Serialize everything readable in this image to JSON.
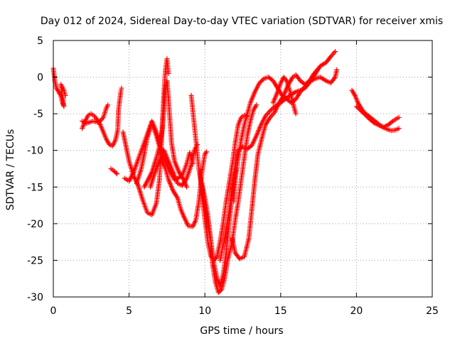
{
  "chart_data": {
    "type": "scatter",
    "title": "Day 012 of 2024, Sidereal Day-to-day VTEC variation (SDTVAR) for receiver xmis",
    "xlabel": "GPS time / hours",
    "ylabel": "SDTVAR / TECUs",
    "xlim": [
      0,
      25
    ],
    "ylim": [
      -30,
      5
    ],
    "grid": true,
    "x_ticks": [
      "0",
      "5",
      "10",
      "15",
      "20",
      "25"
    ],
    "y_ticks": [
      "5",
      "0",
      "-5",
      "-10",
      "-15",
      "-20",
      "-25",
      "-30"
    ],
    "marker": "+",
    "color": "#ff0000",
    "series": [
      {
        "name": "s1",
        "points": [
          [
            0.0,
            1.2
          ],
          [
            0.1,
            -0.5
          ],
          [
            0.2,
            -1.5
          ],
          [
            0.35,
            -2.0
          ],
          [
            0.5,
            -2.6
          ],
          [
            0.6,
            -3.5
          ],
          [
            0.7,
            -4.0
          ],
          [
            0.5,
            -1.0
          ],
          [
            0.7,
            -1.8
          ],
          [
            0.8,
            -2.5
          ]
        ]
      },
      {
        "name": "s2",
        "points": [
          [
            1.9,
            -7.0
          ],
          [
            2.1,
            -6.0
          ],
          [
            2.3,
            -5.2
          ],
          [
            2.5,
            -5.0
          ],
          [
            2.7,
            -5.3
          ],
          [
            2.9,
            -5.8
          ],
          [
            3.1,
            -6.5
          ],
          [
            3.3,
            -7.5
          ],
          [
            3.5,
            -8.5
          ],
          [
            3.7,
            -9.2
          ],
          [
            3.9,
            -9.4
          ],
          [
            4.1,
            -8.6
          ],
          [
            4.25,
            -7.2
          ],
          [
            4.3,
            -4.5
          ],
          [
            4.45,
            -2.0
          ],
          [
            4.5,
            -1.5
          ]
        ]
      },
      {
        "name": "s3",
        "points": [
          [
            1.9,
            -6.0
          ],
          [
            2.2,
            -6.3
          ],
          [
            2.6,
            -6.0
          ],
          [
            3.0,
            -6.2
          ],
          [
            3.3,
            -5.5
          ],
          [
            3.5,
            -4.2
          ],
          [
            3.6,
            -3.8
          ]
        ]
      },
      {
        "name": "s4",
        "points": [
          [
            3.8,
            -12.5
          ],
          [
            4.0,
            -12.8
          ],
          [
            4.2,
            -13.2
          ]
        ]
      },
      {
        "name": "s5",
        "points": [
          [
            4.6,
            -7.5
          ],
          [
            4.8,
            -9.5
          ],
          [
            5.0,
            -11.5
          ],
          [
            5.3,
            -13.5
          ],
          [
            5.6,
            -14.8
          ],
          [
            5.9,
            -16.8
          ],
          [
            6.2,
            -18.5
          ],
          [
            6.5,
            -18.8
          ],
          [
            6.8,
            -17.2
          ],
          [
            7.0,
            -14.0
          ],
          [
            7.1,
            -10.5
          ],
          [
            7.2,
            -6.0
          ],
          [
            7.3,
            -2.0
          ],
          [
            7.4,
            1.0
          ],
          [
            7.5,
            2.5
          ],
          [
            7.6,
            0.5
          ]
        ]
      },
      {
        "name": "s6",
        "points": [
          [
            4.7,
            -13.8
          ],
          [
            5.0,
            -14.2
          ],
          [
            5.3,
            -13.0
          ],
          [
            5.6,
            -11.2
          ],
          [
            5.9,
            -9.5
          ],
          [
            6.2,
            -7.8
          ],
          [
            6.5,
            -6.0
          ],
          [
            6.8,
            -7.5
          ],
          [
            7.0,
            -9.0
          ],
          [
            7.3,
            -11.0
          ],
          [
            7.6,
            -12.5
          ],
          [
            8.0,
            -14.0
          ],
          [
            8.5,
            -13.5
          ],
          [
            8.8,
            -11.8
          ],
          [
            9.0,
            -10.3
          ],
          [
            9.2,
            -11.8
          ]
        ]
      },
      {
        "name": "s7",
        "points": [
          [
            5.5,
            -14.5
          ],
          [
            5.8,
            -12.5
          ],
          [
            6.0,
            -10.5
          ],
          [
            6.2,
            -8.3
          ],
          [
            6.5,
            -6.2
          ],
          [
            6.8,
            -8.0
          ],
          [
            7.0,
            -9.5
          ],
          [
            7.2,
            -11.5
          ],
          [
            7.4,
            -12.5
          ],
          [
            7.6,
            -14.0
          ],
          [
            7.9,
            -15.5
          ],
          [
            8.2,
            -16.5
          ],
          [
            8.4,
            -18.0
          ],
          [
            8.6,
            -19.0
          ],
          [
            8.9,
            -20.3
          ],
          [
            9.2,
            -20.4
          ],
          [
            9.4,
            -19.5
          ],
          [
            9.6,
            -17.0
          ],
          [
            9.8,
            -13.0
          ],
          [
            10.0,
            -10.5
          ],
          [
            10.1,
            -10.2
          ]
        ]
      },
      {
        "name": "s8",
        "points": [
          [
            6.0,
            -15.0
          ],
          [
            6.5,
            -13.0
          ],
          [
            6.8,
            -11.0
          ],
          [
            7.0,
            -9.5
          ],
          [
            7.2,
            -7.0
          ],
          [
            7.3,
            -4.5
          ],
          [
            7.4,
            -1.5
          ],
          [
            7.5,
            -0.5
          ],
          [
            7.6,
            -3.0
          ],
          [
            7.7,
            -6.0
          ],
          [
            7.8,
            -9.0
          ],
          [
            8.0,
            -11.5
          ],
          [
            8.3,
            -13.0
          ],
          [
            8.6,
            -14.0
          ],
          [
            8.8,
            -15.0
          ]
        ]
      },
      {
        "name": "s9",
        "points": [
          [
            6.4,
            -15.0
          ],
          [
            6.7,
            -13.0
          ],
          [
            7.0,
            -11.5
          ],
          [
            7.3,
            -10.0
          ],
          [
            7.6,
            -11.5
          ],
          [
            7.9,
            -13.0
          ],
          [
            8.2,
            -14.5
          ],
          [
            8.5,
            -14.8
          ],
          [
            8.8,
            -13.8
          ],
          [
            9.1,
            -12.0
          ],
          [
            9.3,
            -10.0
          ],
          [
            9.5,
            -9.2
          ]
        ]
      },
      {
        "name": "s10",
        "points": [
          [
            9.1,
            -2.5
          ],
          [
            9.2,
            -4.5
          ],
          [
            9.3,
            -6.5
          ],
          [
            9.4,
            -8.5
          ],
          [
            9.5,
            -10.5
          ],
          [
            9.6,
            -12.5
          ],
          [
            9.8,
            -15.0
          ],
          [
            10.0,
            -17.5
          ],
          [
            10.2,
            -20.0
          ],
          [
            10.4,
            -22.5
          ],
          [
            10.6,
            -25.5
          ],
          [
            10.8,
            -27.5
          ],
          [
            11.0,
            -28.6
          ],
          [
            11.2,
            -27.0
          ],
          [
            11.4,
            -24.0
          ],
          [
            11.6,
            -20.0
          ],
          [
            11.8,
            -16.0
          ],
          [
            12.0,
            -13.0
          ],
          [
            12.1,
            -12.5
          ]
        ]
      },
      {
        "name": "s11",
        "points": [
          [
            9.8,
            -14.5
          ],
          [
            10.0,
            -16.5
          ],
          [
            10.2,
            -19.0
          ],
          [
            10.4,
            -22.5
          ],
          [
            10.5,
            -25.5
          ],
          [
            10.7,
            -28.0
          ],
          [
            10.9,
            -29.4
          ],
          [
            11.1,
            -29.0
          ],
          [
            11.3,
            -27.5
          ],
          [
            11.5,
            -25.0
          ],
          [
            11.8,
            -22.5
          ],
          [
            12.0,
            -19.5
          ],
          [
            12.2,
            -17.0
          ],
          [
            12.4,
            -14.0
          ],
          [
            12.6,
            -11.0
          ],
          [
            12.8,
            -8.0
          ],
          [
            13.0,
            -6.0
          ],
          [
            13.2,
            -4.5
          ],
          [
            13.4,
            -3.8
          ]
        ]
      },
      {
        "name": "s12",
        "points": [
          [
            9.7,
            -13.0
          ],
          [
            9.8,
            -16.0
          ],
          [
            10.0,
            -19.5
          ],
          [
            10.2,
            -22.5
          ],
          [
            10.4,
            -24.5
          ],
          [
            10.6,
            -25.0
          ],
          [
            10.8,
            -24.5
          ],
          [
            11.0,
            -22.5
          ],
          [
            11.2,
            -20.0
          ],
          [
            11.4,
            -17.0
          ],
          [
            11.6,
            -14.5
          ],
          [
            11.8,
            -12.0
          ],
          [
            12.0,
            -9.0
          ],
          [
            12.2,
            -6.5
          ],
          [
            12.4,
            -5.5
          ],
          [
            12.6,
            -5.2
          ],
          [
            12.8,
            -5.3
          ]
        ]
      },
      {
        "name": "s13",
        "points": [
          [
            11.0,
            -25.0
          ],
          [
            11.3,
            -22.0
          ],
          [
            11.6,
            -18.5
          ],
          [
            11.8,
            -15.0
          ],
          [
            12.0,
            -12.0
          ],
          [
            12.2,
            -10.0
          ],
          [
            12.5,
            -9.5
          ],
          [
            12.8,
            -9.8
          ],
          [
            13.1,
            -9.3
          ],
          [
            13.4,
            -8.0
          ],
          [
            13.7,
            -6.5
          ],
          [
            14.0,
            -5.3
          ],
          [
            14.3,
            -4.6
          ],
          [
            14.6,
            -4.0
          ],
          [
            15.0,
            -3.5
          ],
          [
            15.3,
            -3.0
          ],
          [
            15.6,
            -2.5
          ],
          [
            16.0,
            -2.0
          ],
          [
            16.3,
            -1.8
          ],
          [
            16.6,
            -1.5
          ],
          [
            17.0,
            -0.5
          ],
          [
            17.3,
            -0.2
          ],
          [
            17.6,
            0.0
          ],
          [
            18.0,
            -0.5
          ],
          [
            18.3,
            -0.8
          ],
          [
            18.6,
            0.0
          ],
          [
            18.7,
            1.0
          ]
        ]
      },
      {
        "name": "s14",
        "points": [
          [
            11.9,
            -17.0
          ],
          [
            12.0,
            -14.0
          ],
          [
            12.2,
            -11.0
          ],
          [
            12.4,
            -8.5
          ],
          [
            12.6,
            -6.5
          ],
          [
            12.8,
            -5.0
          ],
          [
            13.0,
            -3.5
          ],
          [
            13.3,
            -2.0
          ],
          [
            13.6,
            -0.8
          ],
          [
            13.9,
            -0.2
          ],
          [
            14.2,
            0.0
          ],
          [
            14.5,
            -0.5
          ],
          [
            14.8,
            -1.5
          ],
          [
            15.1,
            -2.5
          ],
          [
            15.4,
            -3.0
          ],
          [
            15.7,
            -3.5
          ],
          [
            16.0,
            -3.0
          ],
          [
            16.3,
            -2.0
          ],
          [
            16.6,
            -1.3
          ],
          [
            17.0,
            -0.5
          ],
          [
            17.3,
            0.5
          ],
          [
            17.6,
            1.5
          ],
          [
            18.0,
            2.0
          ],
          [
            18.3,
            2.8
          ],
          [
            18.6,
            3.5
          ]
        ]
      },
      {
        "name": "s15",
        "points": [
          [
            11.8,
            -22.0
          ],
          [
            12.0,
            -24.0
          ],
          [
            12.3,
            -24.8
          ],
          [
            12.6,
            -24.5
          ],
          [
            12.9,
            -22.0
          ],
          [
            13.1,
            -18.0
          ],
          [
            13.3,
            -14.0
          ],
          [
            13.5,
            -10.5
          ],
          [
            13.8,
            -8.0
          ],
          [
            14.0,
            -6.5
          ],
          [
            14.3,
            -5.5
          ],
          [
            14.6,
            -4.8
          ],
          [
            14.9,
            -3.5
          ],
          [
            15.2,
            -2.5
          ],
          [
            15.5,
            -1.0
          ],
          [
            15.8,
            0.0
          ],
          [
            16.0,
            0.3
          ],
          [
            16.3,
            -0.5
          ],
          [
            16.6,
            -1.0
          ],
          [
            16.9,
            -0.5
          ],
          [
            17.2,
            0.5
          ],
          [
            17.5,
            1.2
          ]
        ]
      },
      {
        "name": "s16",
        "points": [
          [
            14.5,
            -3.5
          ],
          [
            14.8,
            -2.0
          ],
          [
            15.0,
            -0.8
          ],
          [
            15.2,
            0.0
          ],
          [
            15.4,
            -0.5
          ],
          [
            15.6,
            -1.8
          ],
          [
            15.8,
            -3.5
          ],
          [
            16.0,
            -5.0
          ]
        ]
      },
      {
        "name": "s17",
        "points": [
          [
            19.7,
            -1.8
          ],
          [
            19.9,
            -2.5
          ],
          [
            20.1,
            -3.5
          ],
          [
            20.3,
            -4.2
          ],
          [
            20.5,
            -4.8
          ],
          [
            20.8,
            -5.3
          ],
          [
            21.1,
            -5.8
          ],
          [
            21.4,
            -6.3
          ],
          [
            21.7,
            -6.8
          ],
          [
            22.0,
            -7.1
          ],
          [
            22.3,
            -7.3
          ],
          [
            22.6,
            -7.2
          ],
          [
            22.8,
            -7.0
          ]
        ]
      },
      {
        "name": "s18",
        "points": [
          [
            20.0,
            -4.0
          ],
          [
            20.3,
            -4.6
          ],
          [
            20.6,
            -5.2
          ],
          [
            20.9,
            -5.8
          ],
          [
            21.2,
            -6.3
          ],
          [
            21.5,
            -6.6
          ],
          [
            21.8,
            -6.8
          ],
          [
            22.1,
            -6.5
          ],
          [
            22.4,
            -6.0
          ],
          [
            22.7,
            -5.6
          ],
          [
            22.8,
            -5.5
          ]
        ]
      }
    ]
  }
}
